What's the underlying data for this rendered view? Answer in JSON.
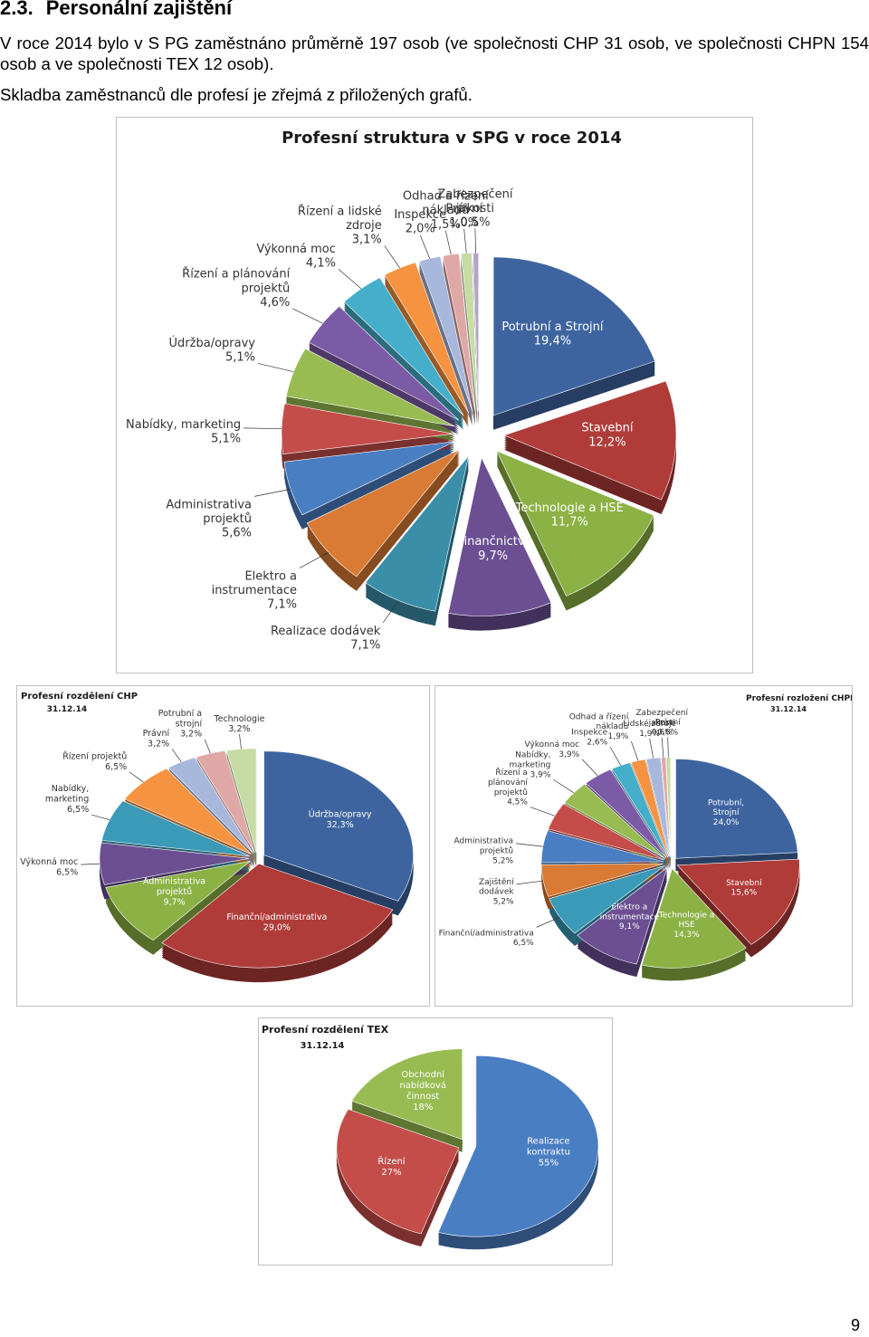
{
  "section": {
    "number": "2.3.",
    "title": "Personální zajištění",
    "paragraph1": "V roce 2014 bylo v S PG zaměstnáno průměrně 197 osob (ve společnosti CHP 31 osob, ve společnosti CHPN 154 osob a ve společnosti TEX 12 osob).",
    "paragraph2": "Skladba zaměstnanců dle profesí je zřejmá z přiložených grafů."
  },
  "page_number": "9",
  "chart_data": [
    {
      "type": "pie",
      "title": "Profesní struktura v SPG v roce 2014",
      "slices": [
        {
          "label": "Potrubní a Strojní",
          "value": 19.4,
          "value_label": "19,4%",
          "color": "#3e64a0"
        },
        {
          "label": "Stavební",
          "value": 12.2,
          "value_label": "12,2%",
          "color": "#b03c3a"
        },
        {
          "label": "Technologie a HSE",
          "value": 11.7,
          "value_label": "11,7%",
          "color": "#8cb245"
        },
        {
          "label": "Finančnictví",
          "value": 9.7,
          "value_label": "9,7%",
          "color": "#6b4f92"
        },
        {
          "label": "Realizace dodávek",
          "value": 7.1,
          "value_label": "7,1%",
          "color": "#3a8ea8"
        },
        {
          "label": "Elektro a instrumentace",
          "value": 7.1,
          "value_label": "7,1%",
          "color": "#d97b34"
        },
        {
          "label": "Administrativa projektů",
          "value": 5.6,
          "value_label": "5,6%",
          "color": "#4a7ec3"
        },
        {
          "label": "Nabídky, marketing",
          "value": 5.1,
          "value_label": "5,1%",
          "color": "#c44d4a"
        },
        {
          "label": "Údržba/opravy",
          "value": 5.1,
          "value_label": "5,1%",
          "color": "#98bc52"
        },
        {
          "label": "Řízení a plánování projektů",
          "value": 4.6,
          "value_label": "4,6%",
          "color": "#7c5ba6"
        },
        {
          "label": "Výkonná moc",
          "value": 4.1,
          "value_label": "4,1%",
          "color": "#45aecb"
        },
        {
          "label": "Řízení a lidské zdroje",
          "value": 3.1,
          "value_label": "3,1%",
          "color": "#f59340"
        },
        {
          "label": "Inspekce",
          "value": 2.0,
          "value_label": "2,0%",
          "color": "#a8b8dc"
        },
        {
          "label": "Odhad a řízení nákladů",
          "value": 1.5,
          "value_label": "1,5%",
          "color": "#dfa7a6"
        },
        {
          "label": "Právní",
          "value": 1.0,
          "value_label": "1,0%",
          "color": "#c6dca4"
        },
        {
          "label": "Zabezpečení jakosti",
          "value": 0.5,
          "value_label": "0,5%",
          "color": "#b3a4c9"
        }
      ]
    },
    {
      "type": "pie",
      "title": "Profesní rozdělení CHP",
      "subtitle": "31.12.14",
      "slices": [
        {
          "label": "Údržba/opravy",
          "value": 32.3,
          "value_label": "32,3%",
          "color": "#3e64a0"
        },
        {
          "label": "Finanční/administrativa",
          "value": 29.0,
          "value_label": "29,0%",
          "color": "#b03c3a"
        },
        {
          "label": "Administrativa projektů",
          "value": 9.7,
          "value_label": "9,7%",
          "color": "#8cb245"
        },
        {
          "label": "Výkonná moc",
          "value": 6.5,
          "value_label": "6,5%",
          "color": "#6b4f92"
        },
        {
          "label": "Nabídky, marketing",
          "value": 6.5,
          "value_label": "6,5%",
          "color": "#3a9ab8"
        },
        {
          "label": "Řízení projektů",
          "value": 6.5,
          "value_label": "6,5%",
          "color": "#f59340"
        },
        {
          "label": "Právní",
          "value": 3.2,
          "value_label": "3,2%",
          "color": "#a8b8dc"
        },
        {
          "label": "Potrubní a strojní",
          "value": 3.2,
          "value_label": "3,2%",
          "color": "#dfa7a6"
        },
        {
          "label": "Technologie",
          "value": 3.2,
          "value_label": "3,2%",
          "color": "#c6dca4"
        }
      ]
    },
    {
      "type": "pie",
      "title": "Profesní rozložení CHPN",
      "subtitle": "31.12.14",
      "slices": [
        {
          "label": "Potrubní, Strojní",
          "value": 24.0,
          "value_label": "24,0%",
          "color": "#3e64a0"
        },
        {
          "label": "Stavební",
          "value": 15.6,
          "value_label": "15,6%",
          "color": "#b03c3a"
        },
        {
          "label": "Technologie a HSE",
          "value": 14.3,
          "value_label": "14,3%",
          "color": "#8cb245"
        },
        {
          "label": "Elektro a instrumentace",
          "value": 9.1,
          "value_label": "9,1%",
          "color": "#6b4f92"
        },
        {
          "label": "Finanční/administrativa",
          "value": 6.5,
          "value_label": "6,5%",
          "color": "#3a9ab8"
        },
        {
          "label": "Zajištění dodávek",
          "value": 5.2,
          "value_label": "5,2%",
          "color": "#d97b34"
        },
        {
          "label": "Administrativa projektů",
          "value": 5.2,
          "value_label": "5,2%",
          "color": "#4a7ec3"
        },
        {
          "label": "Řízení a plánování projektů",
          "value": 4.5,
          "value_label": "4,5%",
          "color": "#c44d4a"
        },
        {
          "label": "Nabídky, marketing",
          "value": 3.9,
          "value_label": "3,9%",
          "color": "#98bc52"
        },
        {
          "label": "Výkonná moc",
          "value": 3.9,
          "value_label": "3,9%",
          "color": "#7c5ba6"
        },
        {
          "label": "Inspekce",
          "value": 2.6,
          "value_label": "2,6%",
          "color": "#45aecb"
        },
        {
          "label": "Odhad a řízení nákladů",
          "value": 1.9,
          "value_label": "1,9%",
          "color": "#f59340"
        },
        {
          "label": "Lidské zdroje",
          "value": 1.9,
          "value_label": "1,9%",
          "color": "#a8b8dc"
        },
        {
          "label": "Zabezpečení jakosti",
          "value": 0.6,
          "value_label": "0,6%",
          "color": "#dfa7a6"
        },
        {
          "label": "Právní",
          "value": 0.6,
          "value_label": "0,6%",
          "color": "#c6dca4"
        }
      ]
    },
    {
      "type": "pie",
      "title": "Profesní rozdělení TEX",
      "subtitle": "31.12.14",
      "slices": [
        {
          "label": "Realizace kontraktu",
          "value": 55,
          "value_label": "55%",
          "color": "#4a7ec3"
        },
        {
          "label": "Řízení",
          "value": 27,
          "value_label": "27%",
          "color": "#c44d4a"
        },
        {
          "label": "Obchodní nabídková činnost",
          "value": 18,
          "value_label": "18%",
          "color": "#98bc52"
        }
      ]
    }
  ]
}
